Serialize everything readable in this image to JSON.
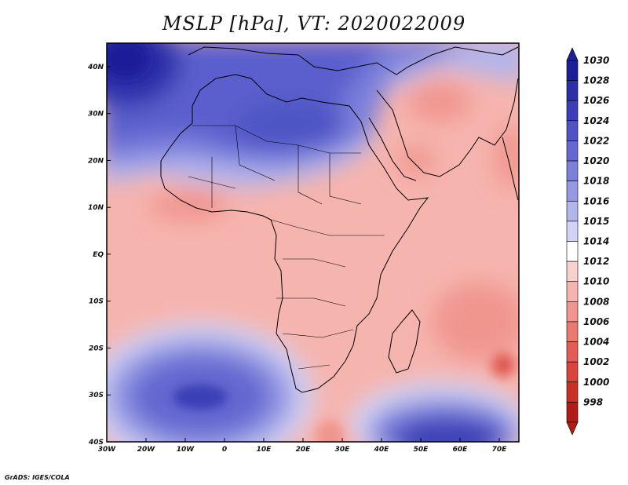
{
  "title": "MSLP [hPa], VT: 2020022009",
  "credit": "GrADS: IGES/COLA",
  "lat_labels": [
    "40N",
    "30N",
    "20N",
    "10N",
    "EQ",
    "10S",
    "20S",
    "30S",
    "40S"
  ],
  "lon_labels": [
    "30W",
    "20W",
    "10W",
    "0",
    "10E",
    "20E",
    "30E",
    "40E",
    "50E",
    "60E",
    "70E"
  ],
  "lon_range_deg": [
    -30,
    75
  ],
  "lat_range_deg": [
    -40,
    45
  ],
  "colorbar": {
    "levels": [
      "1030",
      "1028",
      "1026",
      "1024",
      "1022",
      "1020",
      "1018",
      "1016",
      "1015",
      "1014",
      "1012",
      "1010",
      "1008",
      "1006",
      "1004",
      "1002",
      "1000",
      "998"
    ],
    "colors": [
      "#1c1f9a",
      "#2b2fa8",
      "#3a3fb7",
      "#4e54c4",
      "#6468d0",
      "#7c80db",
      "#9598e3",
      "#b2b4ec",
      "#d1d2f5",
      "#ffffff",
      "#fad0cc",
      "#f6b4ae",
      "#f0968f",
      "#e97a72",
      "#e15d55",
      "#d9443c",
      "#c93028",
      "#b21c16"
    ]
  },
  "map_data": {
    "field": "mean sea level pressure",
    "units": "hPa",
    "valid_time": "2020022009",
    "features": [
      {
        "name": "High over North Atlantic / Azores",
        "value": 1030,
        "lon": -27,
        "lat": 40
      },
      {
        "name": "High over North Africa / Sahara",
        "value": 1024,
        "lon": 10,
        "lat": 30
      },
      {
        "name": "High over South Atlantic",
        "value": 1026,
        "lon": -7,
        "lat": -30
      },
      {
        "name": "High south of Madagascar (Mascarene)",
        "value": 1026,
        "lon": 57,
        "lat": -38
      },
      {
        "name": "Low near Mascarene region",
        "value": 1004,
        "lon": 70,
        "lat": -24
      },
      {
        "name": "Low over Arabian Peninsula",
        "value": 1010,
        "lon": 45,
        "lat": 20
      }
    ]
  }
}
